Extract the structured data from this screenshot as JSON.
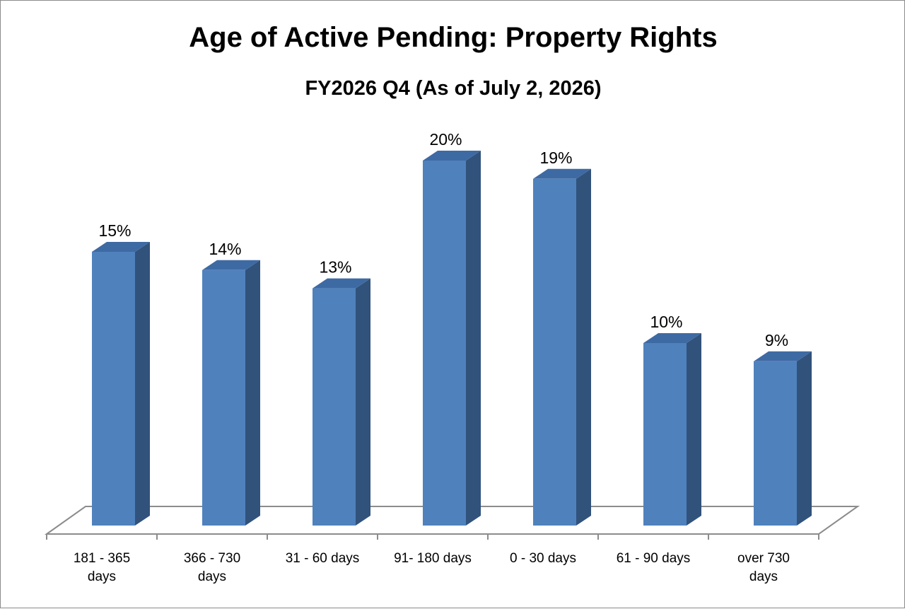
{
  "chart_data": {
    "type": "bar",
    "title": "Age of Active Pending: Property Rights",
    "subtitle": "FY2026 Q4 (As of July 2, 2026)",
    "categories": [
      "181 - 365 days",
      "366 - 730 days",
      "31 - 60 days",
      "91- 180 days",
      "0 - 30 days",
      "61 - 90 days",
      "over 730 days"
    ],
    "category_lines": [
      [
        "181 - 365",
        "days"
      ],
      [
        "366 - 730",
        "days"
      ],
      [
        "31 - 60 days"
      ],
      [
        "91- 180 days"
      ],
      [
        "0 - 30 days"
      ],
      [
        "61 - 90 days"
      ],
      [
        "over 730",
        "days"
      ]
    ],
    "values": [
      15,
      14,
      13,
      20,
      19,
      10,
      9
    ],
    "data_labels": [
      "15%",
      "14%",
      "13%",
      "20%",
      "19%",
      "10%",
      "9%"
    ],
    "unit": "%",
    "style": "3d-column",
    "grid": false,
    "legend": "none",
    "colors": {
      "bar_front": "#4f81bd",
      "bar_side": "#31527b",
      "bar_top": "#3e6aa3",
      "floor_line": "#8c8c8c"
    }
  }
}
